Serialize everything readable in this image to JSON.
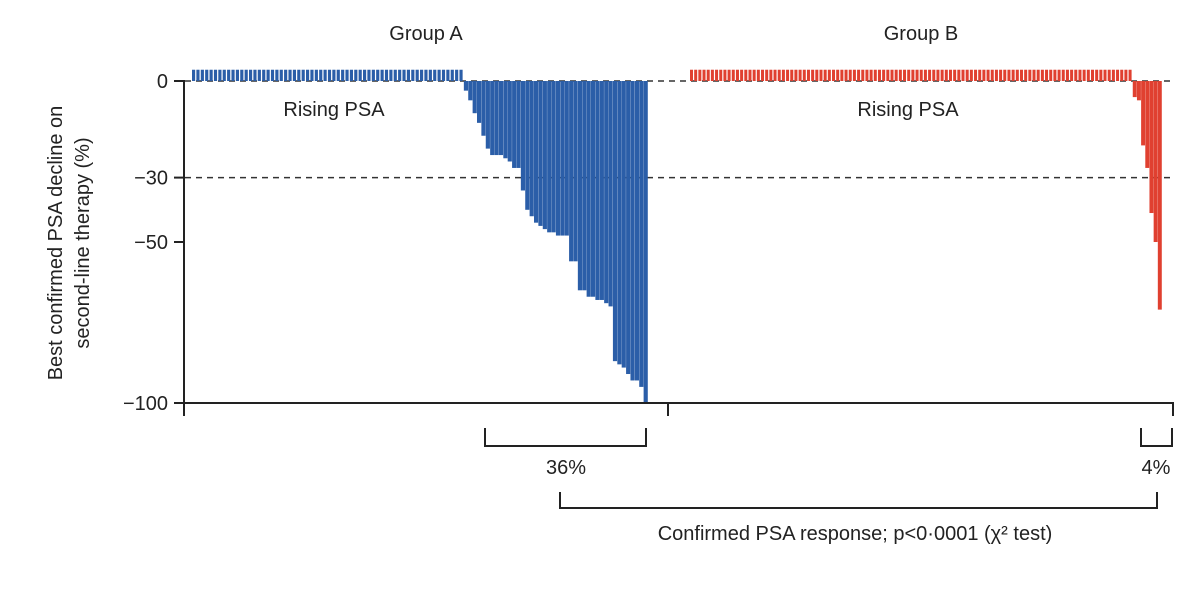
{
  "chart_data": {
    "type": "bar",
    "ylabel_line1": "Best confirmed PSA decline on",
    "ylabel_line2": "second-line therapy (%)",
    "yticks": [
      0,
      -30,
      -50,
      -100
    ],
    "ylim": [
      -100,
      4
    ],
    "reference_lines": [
      0,
      -30
    ],
    "rising_value": 3.5,
    "groups": [
      {
        "name": "Group A",
        "color": "#2b5ea8",
        "rising_label": "Rising PSA",
        "rising_count": 62,
        "values": [
          -3,
          -6,
          -10,
          -13,
          -17,
          -21,
          -23,
          -23,
          -23,
          -24,
          -25,
          -27,
          -27,
          -34,
          -40,
          -42,
          -44,
          -45,
          -46,
          -47,
          -47,
          -48,
          -48,
          -48,
          -56,
          -56,
          -65,
          -65,
          -67,
          -67,
          -68,
          -68,
          -69,
          -70,
          -87,
          -88,
          -89,
          -91,
          -93,
          -93,
          -95,
          -100
        ],
        "response_label": "36%"
      },
      {
        "name": "Group B",
        "color": "#e04030",
        "rising_label": "Rising PSA",
        "rising_count": 106,
        "values": [
          -5,
          -6,
          -20,
          -27,
          -41,
          -50,
          -71
        ],
        "response_label": "4%"
      }
    ],
    "comparison_label": "Confirmed PSA response; p<0·0001 (χ² test)"
  }
}
